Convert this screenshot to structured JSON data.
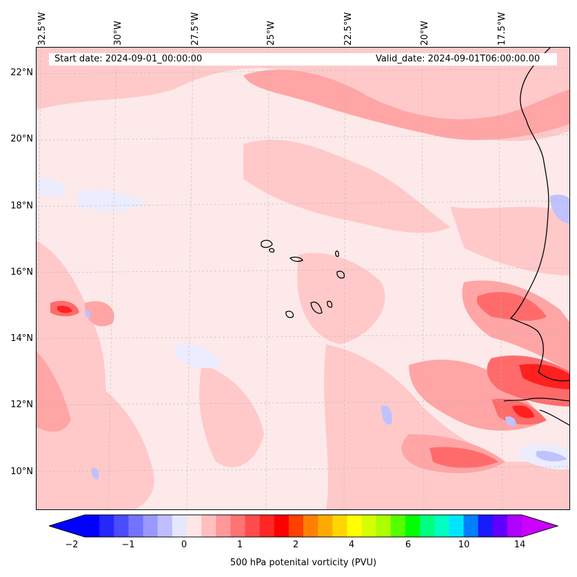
{
  "header": {
    "start_date": "Start date: 2024-09-01_00:00:00",
    "valid_date": "Valid_date: 2024-09-01T06:00:00.00"
  },
  "axes": {
    "lon_labels": [
      "32.5°W",
      "30°W",
      "27.5°W",
      "25°W",
      "22.5°W",
      "20°W",
      "17.5°W"
    ],
    "lat_labels": [
      "22°N",
      "20°N",
      "18°N",
      "16°N",
      "14°N",
      "12°N",
      "10°N"
    ]
  },
  "colorbar": {
    "label": "500 hPa potenital vorticity (PVU)",
    "ticks": [
      "−2",
      "−1",
      "0",
      "1",
      "2",
      "4",
      "6",
      "10",
      "14"
    ],
    "colors": [
      "#0000ff",
      "#2626ff",
      "#4c4cff",
      "#7373ff",
      "#9999ff",
      "#bfbfff",
      "#e6e6ff",
      "#ffe6e6",
      "#ffbfbf",
      "#ff9999",
      "#ff7373",
      "#ff4c4c",
      "#ff2626",
      "#ff0000",
      "#ff4000",
      "#ff8000",
      "#ffaa00",
      "#ffd500",
      "#ffff00",
      "#d5ff00",
      "#aaff00",
      "#55ff00",
      "#00ff00",
      "#00ff80",
      "#00ffc0",
      "#00e5ff",
      "#0080ff",
      "#1a1aff",
      "#6000ff",
      "#b000ff"
    ],
    "under_color": "#0000ff",
    "over_color": "#cc00ff"
  },
  "field_colors": {
    "background": "#fde9e9",
    "light_pink": "#ffc9c9",
    "mid_pink": "#ffa5a5",
    "red": "#ff6b6b",
    "deep_red": "#ff2020",
    "light_blue": "#ececff",
    "mid_blue": "#bfc2ff",
    "coastline": "#000000"
  }
}
